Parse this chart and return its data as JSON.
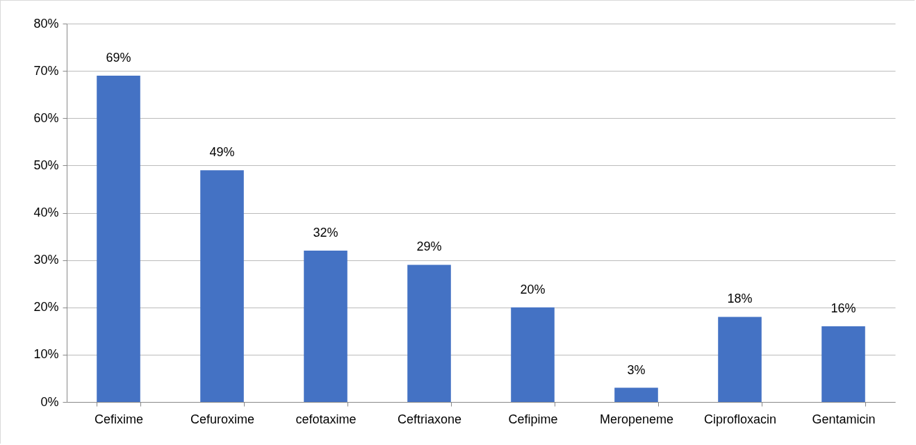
{
  "chart_data": {
    "type": "bar",
    "categories": [
      "Cefixime",
      "Cefuroxime",
      "cefotaxime",
      "Ceftriaxone",
      "Cefipime",
      "Meropeneme",
      "Ciprofloxacin",
      "Gentamicin"
    ],
    "values": [
      69,
      49,
      32,
      29,
      20,
      3,
      18,
      16
    ],
    "value_labels": [
      "69%",
      "49%",
      "32%",
      "29%",
      "20%",
      "3%",
      "18%",
      "16%"
    ],
    "color": "#4472c4",
    "ylim": [
      0,
      80
    ],
    "yticks": [
      {
        "value": 0,
        "label": "0%"
      },
      {
        "value": 10,
        "label": "10%"
      },
      {
        "value": 20,
        "label": "20%"
      },
      {
        "value": 30,
        "label": "30%"
      },
      {
        "value": 40,
        "label": "40%"
      },
      {
        "value": 50,
        "label": "50%"
      },
      {
        "value": 60,
        "label": "60%"
      },
      {
        "value": 70,
        "label": "70%"
      },
      {
        "value": 80,
        "label": "80%"
      }
    ],
    "grid": "y"
  }
}
